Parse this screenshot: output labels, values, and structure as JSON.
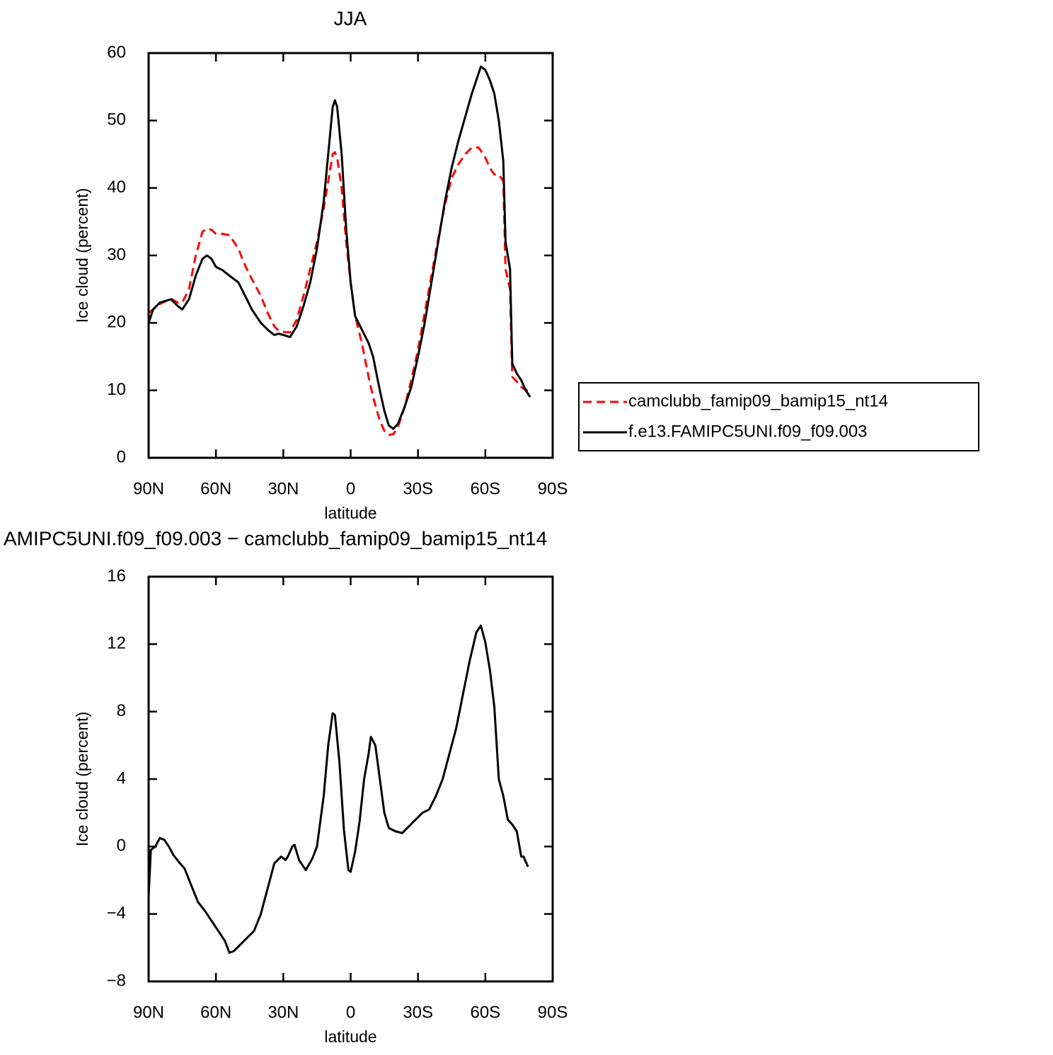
{
  "chart_data": [
    {
      "type": "line",
      "title": "JJA",
      "xlabel": "latitude",
      "ylabel": "Ice cloud (percent)",
      "xlim": [
        90,
        -90
      ],
      "xticks": [
        {
          "value": 90,
          "label": "90N"
        },
        {
          "value": 60,
          "label": "60N"
        },
        {
          "value": 30,
          "label": "30N"
        },
        0,
        {
          "value": -30,
          "label": "30S"
        },
        {
          "value": -60,
          "label": "60S"
        },
        {
          "value": -90,
          "label": "90S"
        }
      ],
      "ylim": [
        0,
        60
      ],
      "yticks": [
        0,
        10,
        20,
        30,
        40,
        50,
        60
      ],
      "legend": "right",
      "x": [
        90,
        88,
        85,
        80,
        77,
        75,
        72,
        69,
        66,
        64,
        62,
        60,
        57,
        54,
        50,
        47,
        44,
        40,
        37,
        34,
        32,
        29,
        27,
        24,
        21,
        18,
        15,
        12,
        10,
        8,
        7,
        6,
        4,
        2,
        0,
        -2,
        -5,
        -8,
        -10,
        -13,
        -15,
        -17,
        -19,
        -21,
        -24,
        -27,
        -30,
        -33,
        -36,
        -39,
        -42,
        -45,
        -48,
        -51,
        -54,
        -57,
        -58,
        -60,
        -62,
        -64,
        -66,
        -68,
        -69,
        -71,
        -72,
        -74,
        -76,
        -78,
        -80
      ],
      "series": [
        {
          "name": "camclubb_famip09_bamip15_nt14",
          "color": "#ff0000",
          "style": "dashed",
          "values": [
            21.5,
            22,
            22.8,
            23.6,
            23,
            23,
            25,
            30,
            33.5,
            34,
            33.8,
            33.2,
            33.2,
            33,
            31,
            28.5,
            26.5,
            24,
            21.5,
            19.5,
            18.8,
            18.6,
            18.6,
            20.5,
            24,
            28,
            32,
            37,
            41,
            45,
            45.3,
            44.5,
            40,
            32,
            26,
            21,
            17,
            12,
            9,
            5.5,
            4,
            3.4,
            3.5,
            4.5,
            7.5,
            11.5,
            16,
            21.5,
            27,
            32.5,
            37.5,
            41.5,
            43.5,
            45,
            46,
            46,
            45.5,
            44.5,
            43,
            42,
            42,
            41,
            28,
            25,
            12,
            11.3,
            10.5,
            10,
            10
          ]
        },
        {
          "name": "f.e13.FAMIPC5UNI.f09_f09.003",
          "color": "#000000",
          "style": "solid",
          "values": [
            20,
            22,
            23,
            23.5,
            22.5,
            22,
            23.5,
            27,
            29.5,
            30,
            29.5,
            28.3,
            27.8,
            27,
            26,
            24,
            22,
            20,
            19,
            18.2,
            18.4,
            18.1,
            17.9,
            19.5,
            22.5,
            26,
            31,
            38,
            45,
            52,
            53,
            52,
            45,
            34,
            26,
            21,
            19,
            17,
            15,
            10,
            7,
            4.8,
            4.3,
            5,
            7.5,
            10.5,
            15,
            20,
            26,
            32,
            38,
            43,
            47,
            50.5,
            54,
            57,
            58,
            57.5,
            56,
            54,
            50,
            44,
            32,
            28,
            14,
            12.5,
            11.5,
            10,
            9
          ]
        }
      ]
    },
    {
      "type": "line",
      "title": "AMIPC5UNI.f09_f09.003 − camclubb_famip09_bamip15_nt14",
      "xlabel": "latitude",
      "ylabel": "Ice cloud (percent)",
      "xlim": [
        90,
        -90
      ],
      "xticks": [
        {
          "value": 90,
          "label": "90N"
        },
        {
          "value": 60,
          "label": "60N"
        },
        {
          "value": 30,
          "label": "30N"
        },
        0,
        {
          "value": -30,
          "label": "30S"
        },
        {
          "value": -60,
          "label": "60S"
        },
        {
          "value": -90,
          "label": "90S"
        }
      ],
      "ylim": [
        -8,
        16
      ],
      "yticks": [
        {
          "value": -8,
          "label": "−8"
        },
        {
          "value": -4,
          "label": "−4"
        },
        0,
        4,
        8,
        12,
        16
      ],
      "x": [
        90,
        89,
        87,
        85,
        83,
        81,
        79,
        76,
        74,
        71,
        68,
        65,
        62,
        59,
        56,
        54,
        52,
        49,
        46,
        43,
        40,
        37,
        34,
        31,
        29,
        28,
        26,
        25,
        23,
        20,
        17,
        15,
        12,
        10,
        8,
        7,
        5,
        3,
        1,
        0,
        -2,
        -4,
        -6,
        -8,
        -9,
        -11,
        -13,
        -15,
        -17,
        -20,
        -23,
        -26,
        -29,
        -32,
        -35,
        -38,
        -41,
        -44,
        -47,
        -50,
        -53,
        -56,
        -58,
        -60,
        -62,
        -64,
        -66,
        -68,
        -70,
        -72,
        -74,
        -76,
        -77,
        -79
      ],
      "series": [
        {
          "color": "#000000",
          "style": "solid",
          "values": [
            -3,
            -0.2,
            0,
            0.5,
            0.4,
            0,
            -0.5,
            -1,
            -1.3,
            -2.3,
            -3.3,
            -3.8,
            -4.4,
            -5,
            -5.6,
            -6.3,
            -6.2,
            -5.8,
            -5.4,
            -5,
            -4,
            -2.5,
            -1,
            -0.6,
            -0.8,
            -0.6,
            0,
            0.1,
            -0.8,
            -1.4,
            -0.7,
            0,
            3,
            6,
            7.9,
            7.8,
            5,
            1,
            -1.4,
            -1.5,
            -0.3,
            1.5,
            4,
            5.5,
            6.5,
            6,
            4,
            2,
            1.1,
            0.9,
            0.8,
            1.2,
            1.6,
            2,
            2.2,
            3,
            4,
            5.5,
            7,
            9,
            11,
            12.7,
            13.1,
            12.1,
            10.5,
            8.3,
            4,
            3,
            1.6,
            1.3,
            0.9,
            -0.6,
            -0.6,
            -1.2
          ]
        }
      ]
    }
  ]
}
